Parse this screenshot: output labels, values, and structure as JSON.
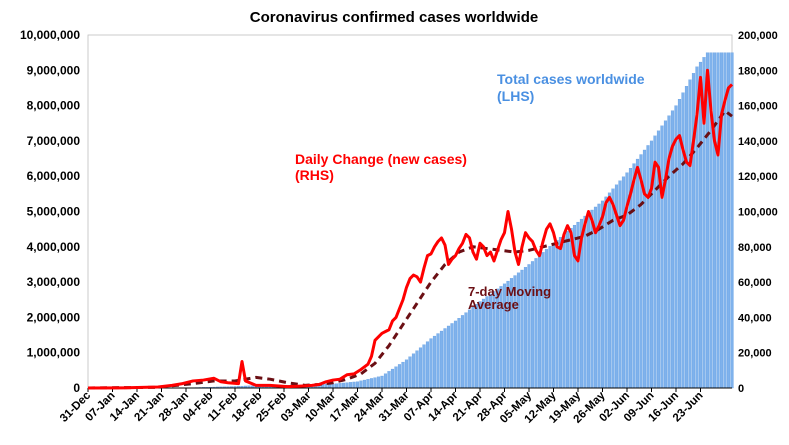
{
  "chart_data": {
    "type": "bar",
    "title": "Coronavirus confirmed cases worldwide",
    "x_tick_labels": [
      "31-Dec",
      "07-Jan",
      "14-Jan",
      "21-Jan",
      "28-Jan",
      "04-Feb",
      "11-Feb",
      "18-Feb",
      "25-Feb",
      "03-Mar",
      "10-Mar",
      "17-Mar",
      "24-Mar",
      "31-Mar",
      "07-Apr",
      "14-Apr",
      "21-Apr",
      "28-Apr",
      "05-May",
      "12-May",
      "19-May",
      "26-May",
      "02-Jun",
      "09-Jun",
      "16-Jun",
      "23-Jun"
    ],
    "y_left": {
      "ticks": [
        "0",
        "1,000,000",
        "2,000,000",
        "3,000,000",
        "4,000,000",
        "5,000,000",
        "6,000,000",
        "7,000,000",
        "8,000,000",
        "9,000,000",
        "10,000,000"
      ],
      "lim": [
        0,
        10000000
      ]
    },
    "y_right": {
      "ticks": [
        "0",
        "20,000",
        "40,000",
        "60,000",
        "80,000",
        "100,000",
        "120,000",
        "140,000",
        "160,000",
        "180,000",
        "200,000"
      ],
      "lim": [
        0,
        200000
      ]
    },
    "annotations": {
      "total_line1": "Total cases worldwide",
      "total_line2": "(LHS)",
      "daily_line1": "Daily Change (new cases)",
      "daily_line2": "(RHS)",
      "ma_line1": "7-day Moving",
      "ma_line2": "Average"
    },
    "colors": {
      "bars": "#7fb2ec",
      "bars_edge": "#4f8fdc",
      "daily": "#ff0000",
      "ma": "#6b0f14",
      "total_label": "#4a90e2",
      "daily_label": "#ff0000",
      "ma_label": "#6b0f14"
    },
    "series": [
      {
        "name": "Total cases worldwide",
        "axis": "left",
        "kind": "bar",
        "points": [
          [
            0,
            0
          ],
          [
            14,
            100
          ],
          [
            21,
            400
          ],
          [
            28,
            6000
          ],
          [
            35,
            24000
          ],
          [
            42,
            45000
          ],
          [
            49,
            75000
          ],
          [
            56,
            80000
          ],
          [
            63,
            88000
          ],
          [
            70,
            115000
          ],
          [
            77,
            180000
          ],
          [
            84,
            340000
          ],
          [
            91,
            800000
          ],
          [
            98,
            1400000
          ],
          [
            105,
            1900000
          ],
          [
            112,
            2450000
          ],
          [
            119,
            2950000
          ],
          [
            126,
            3500000
          ],
          [
            133,
            4100000
          ],
          [
            140,
            4700000
          ],
          [
            147,
            5300000
          ],
          [
            154,
            6100000
          ],
          [
            161,
            7000000
          ],
          [
            168,
            8000000
          ],
          [
            174,
            9100000
          ],
          [
            177,
            9500000
          ]
        ]
      },
      {
        "name": "Daily Change (new cases)",
        "axis": "right",
        "kind": "line",
        "points": [
          [
            0,
            0
          ],
          [
            10,
            100
          ],
          [
            20,
            600
          ],
          [
            24,
            1500
          ],
          [
            27,
            2500
          ],
          [
            30,
            4000
          ],
          [
            33,
            4500
          ],
          [
            36,
            5500
          ],
          [
            38,
            3500
          ],
          [
            40,
            3000
          ],
          [
            43,
            2500
          ],
          [
            44,
            15000
          ],
          [
            45,
            4000
          ],
          [
            48,
            1500
          ],
          [
            52,
            1500
          ],
          [
            57,
            800
          ],
          [
            60,
            1000
          ],
          [
            62,
            1200
          ],
          [
            64,
            1500
          ],
          [
            66,
            2000
          ],
          [
            68,
            3500
          ],
          [
            70,
            4500
          ],
          [
            72,
            5000
          ],
          [
            74,
            7500
          ],
          [
            76,
            8000
          ],
          [
            78,
            10500
          ],
          [
            80,
            13500
          ],
          [
            81,
            18000
          ],
          [
            82,
            27000
          ],
          [
            83,
            29000
          ],
          [
            84,
            31000
          ],
          [
            85,
            32000
          ],
          [
            86,
            33000
          ],
          [
            87,
            38000
          ],
          [
            88,
            40000
          ],
          [
            89,
            45000
          ],
          [
            90,
            50000
          ],
          [
            91,
            57000
          ],
          [
            92,
            62000
          ],
          [
            93,
            64000
          ],
          [
            94,
            63000
          ],
          [
            95,
            60000
          ],
          [
            96,
            68000
          ],
          [
            97,
            75000
          ],
          [
            98,
            76000
          ],
          [
            99,
            80000
          ],
          [
            100,
            83000
          ],
          [
            101,
            85000
          ],
          [
            102,
            81000
          ],
          [
            103,
            70000
          ],
          [
            104,
            73000
          ],
          [
            105,
            75000
          ],
          [
            106,
            79000
          ],
          [
            107,
            82000
          ],
          [
            108,
            87000
          ],
          [
            109,
            85000
          ],
          [
            110,
            77000
          ],
          [
            111,
            73000
          ],
          [
            112,
            82000
          ],
          [
            113,
            80000
          ],
          [
            114,
            75000
          ],
          [
            115,
            77000
          ],
          [
            116,
            72000
          ],
          [
            117,
            78000
          ],
          [
            118,
            84000
          ],
          [
            119,
            88000
          ],
          [
            120,
            100000
          ],
          [
            121,
            90000
          ],
          [
            122,
            77000
          ],
          [
            123,
            70000
          ],
          [
            124,
            80000
          ],
          [
            125,
            88000
          ],
          [
            126,
            85000
          ],
          [
            127,
            83000
          ],
          [
            128,
            78000
          ],
          [
            129,
            75000
          ],
          [
            130,
            83000
          ],
          [
            131,
            90000
          ],
          [
            132,
            93000
          ],
          [
            133,
            88000
          ],
          [
            134,
            80000
          ],
          [
            135,
            79000
          ],
          [
            136,
            87000
          ],
          [
            137,
            92000
          ],
          [
            138,
            88000
          ],
          [
            139,
            75000
          ],
          [
            140,
            72000
          ],
          [
            141,
            85000
          ],
          [
            142,
            93000
          ],
          [
            143,
            100000
          ],
          [
            144,
            95000
          ],
          [
            145,
            88000
          ],
          [
            146,
            92000
          ],
          [
            147,
            97000
          ],
          [
            148,
            105000
          ],
          [
            149,
            108000
          ],
          [
            150,
            104000
          ],
          [
            151,
            98000
          ],
          [
            152,
            92000
          ],
          [
            153,
            95000
          ],
          [
            154,
            103000
          ],
          [
            155,
            110000
          ],
          [
            156,
            118000
          ],
          [
            157,
            125000
          ],
          [
            158,
            118000
          ],
          [
            159,
            110000
          ],
          [
            160,
            108000
          ],
          [
            161,
            113000
          ],
          [
            162,
            128000
          ],
          [
            163,
            125000
          ],
          [
            164,
            108000
          ],
          [
            165,
            118000
          ],
          [
            166,
            130000
          ],
          [
            167,
            137000
          ],
          [
            168,
            141000
          ],
          [
            169,
            143000
          ],
          [
            170,
            135000
          ],
          [
            171,
            128000
          ],
          [
            172,
            126000
          ],
          [
            173,
            140000
          ],
          [
            174,
            155000
          ],
          [
            175,
            176000
          ],
          [
            176,
            150000
          ],
          [
            177,
            180000
          ],
          [
            178,
            157000
          ],
          [
            179,
            140000
          ],
          [
            180,
            132000
          ],
          [
            181,
            155000
          ],
          [
            182,
            163000
          ],
          [
            183,
            170000
          ],
          [
            184,
            172000
          ]
        ]
      },
      {
        "name": "7-day Moving Average",
        "axis": "right",
        "kind": "line",
        "points": [
          [
            0,
            0
          ],
          [
            20,
            400
          ],
          [
            30,
            2500
          ],
          [
            36,
            4000
          ],
          [
            42,
            4000
          ],
          [
            48,
            6000
          ],
          [
            52,
            5000
          ],
          [
            57,
            3000
          ],
          [
            62,
            1500
          ],
          [
            66,
            2000
          ],
          [
            70,
            3000
          ],
          [
            74,
            5000
          ],
          [
            78,
            8000
          ],
          [
            82,
            14000
          ],
          [
            86,
            24000
          ],
          [
            90,
            36000
          ],
          [
            94,
            48000
          ],
          [
            98,
            60000
          ],
          [
            102,
            70000
          ],
          [
            106,
            77000
          ],
          [
            110,
            80000
          ],
          [
            114,
            79000
          ],
          [
            118,
            78000
          ],
          [
            122,
            77000
          ],
          [
            126,
            78000
          ],
          [
            130,
            80000
          ],
          [
            134,
            82000
          ],
          [
            138,
            84000
          ],
          [
            142,
            86000
          ],
          [
            146,
            90000
          ],
          [
            150,
            95000
          ],
          [
            154,
            98000
          ],
          [
            158,
            104000
          ],
          [
            162,
            112000
          ],
          [
            166,
            120000
          ],
          [
            170,
            127000
          ],
          [
            174,
            136000
          ],
          [
            178,
            146000
          ],
          [
            182,
            157000
          ],
          [
            184,
            154000
          ]
        ]
      }
    ]
  }
}
